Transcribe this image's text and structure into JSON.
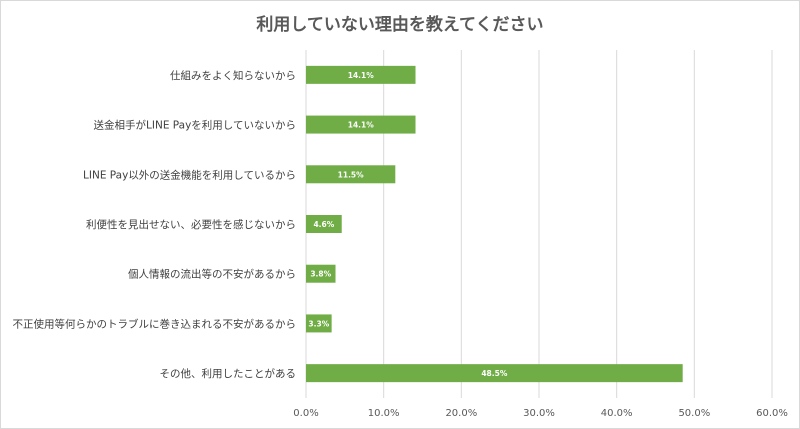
{
  "chart_data": {
    "type": "bar",
    "orientation": "horizontal",
    "title": "利用していない理由を教えてください",
    "categories": [
      "仕組みをよく知らないから",
      "送金相手がLINE Payを利用していないから",
      "LINE Pay以外の送金機能を利用しているから",
      "利便性を見出せない、必要性を感じないから",
      "個人情報の流出等の不安があるから",
      "不正使用等何らかのトラブルに巻き込まれる不安があるから",
      "その他、利用したことがある"
    ],
    "values": [
      14.1,
      14.1,
      11.5,
      4.6,
      3.8,
      3.3,
      48.5
    ],
    "value_labels": [
      "14.1%",
      "14.1%",
      "11.5%",
      "4.6%",
      "3.8%",
      "3.3%",
      "48.5%"
    ],
    "xlim": [
      0,
      60
    ],
    "xticks": [
      "0.0%",
      "10.0%",
      "20.0%",
      "30.0%",
      "40.0%",
      "50.0%",
      "60.0%"
    ],
    "xtick_values": [
      0,
      10,
      20,
      30,
      40,
      50,
      60
    ],
    "grid": true,
    "bar_color": "#70ad47",
    "grid_color": "#d9d9d9",
    "text_color": "#595959",
    "label_color": "#ffffff"
  }
}
